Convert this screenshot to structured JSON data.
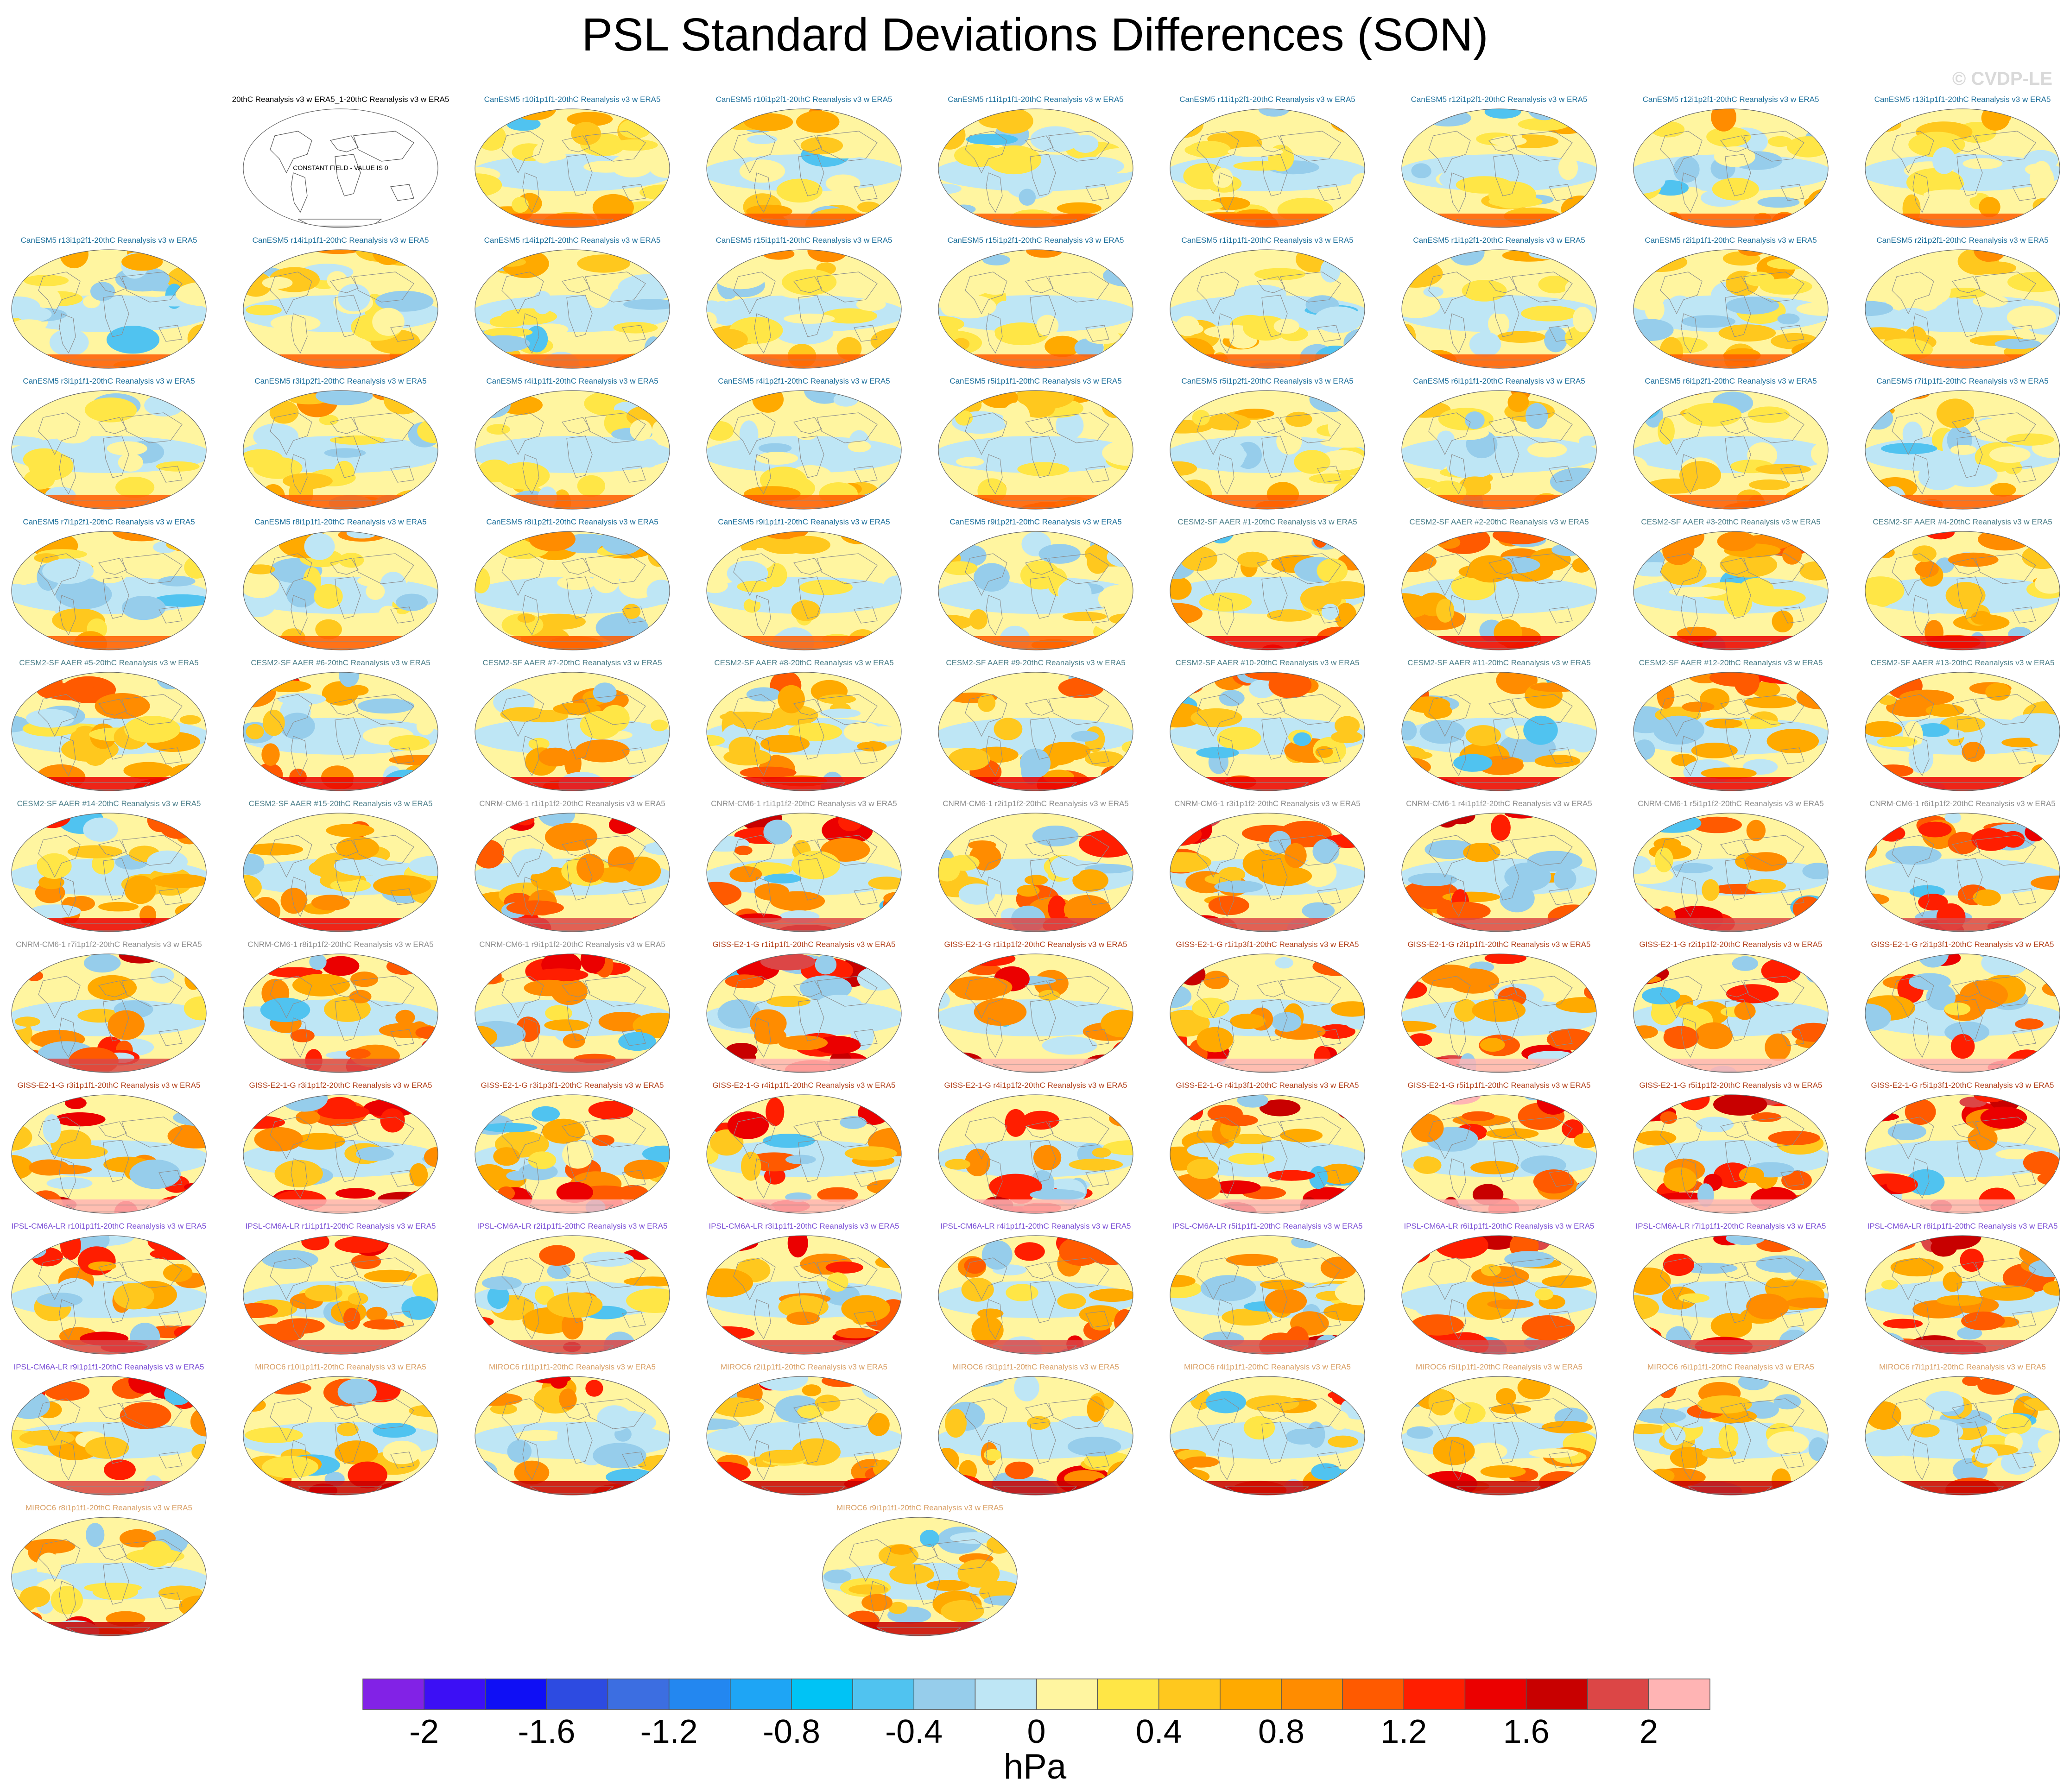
{
  "title": "PSL Standard Deviations Differences (SON)",
  "watermark": "© CVDP-LE",
  "colors": {
    "CanESM5": "#1c6f9b",
    "CESM2-SF AAER": "#4c7f8a",
    "CNRM-CM6-1": "#8c8c8c",
    "GISS-E2-1-G": "#b2401a",
    "IPSL-CM6A-LR": "#7b4fd6",
    "MIROC6": "#d9a066",
    "reference": "#000000",
    "land_outline": "#8c8c8c"
  },
  "reference_panel": {
    "title": "20thC Reanalysis v3 w ERA5_1-20thC Reanalysis v3 w ERA5",
    "note": "CONSTANT FIELD - VALUE IS 0"
  },
  "chart_data": {
    "type": "heatmap",
    "projection": "robinson",
    "variable": "PSL",
    "season": "SON",
    "units": "hPa",
    "colorbar": {
      "colors": [
        "#8222e6",
        "#3c0ff5",
        "#0f0ff5",
        "#2d4be1",
        "#3c6ee1",
        "#2387f0",
        "#1ea5f5",
        "#00c3f5",
        "#50c3f0",
        "#96cdeb",
        "#bee6f5",
        "#fff5a0",
        "#ffe646",
        "#ffc81e",
        "#ffaa00",
        "#ff8c00",
        "#ff5a00",
        "#ff1e00",
        "#eb0000",
        "#c80000",
        "#dc4646",
        "#ffb4b4"
      ],
      "levels": [
        -2,
        -1.8,
        -1.6,
        -1.4,
        -1.2,
        -1,
        -0.8,
        -0.6,
        -0.4,
        -0.2,
        0,
        0.2,
        0.4,
        0.6,
        0.8,
        1,
        1.2,
        1.4,
        1.6,
        1.8,
        2
      ],
      "labels": [
        "-2",
        "-1.6",
        "-1.2",
        "-0.8",
        "-0.4",
        "0",
        "0.4",
        "0.8",
        "1.2",
        "1.6",
        "2"
      ]
    },
    "panels": [
      {
        "model": "reference",
        "title": "20thC Reanalysis v3 w ERA5_1-20thC Reanalysis v3 w ERA5"
      },
      {
        "model": "CanESM5",
        "title": "CanESM5 r10i1p1f1-20thC Reanalysis v3 w ERA5"
      },
      {
        "model": "CanESM5",
        "title": "CanESM5 r10i1p2f1-20thC Reanalysis v3 w ERA5"
      },
      {
        "model": "CanESM5",
        "title": "CanESM5 r11i1p1f1-20thC Reanalysis v3 w ERA5"
      },
      {
        "model": "CanESM5",
        "title": "CanESM5 r11i1p2f1-20thC Reanalysis v3 w ERA5"
      },
      {
        "model": "CanESM5",
        "title": "CanESM5 r12i1p2f1-20thC Reanalysis v3 w ERA5"
      },
      {
        "model": "CanESM5",
        "title": "CanESM5 r12i1p2f1-20thC Reanalysis v3 w ERA5"
      },
      {
        "model": "CanESM5",
        "title": "CanESM5 r13i1p1f1-20thC Reanalysis v3 w ERA5"
      },
      {
        "model": "CanESM5",
        "title": "CanESM5 r13i1p2f1-20thC Reanalysis v3 w ERA5"
      },
      {
        "model": "CanESM5",
        "title": "CanESM5 r14i1p1f1-20thC Reanalysis v3 w ERA5"
      },
      {
        "model": "CanESM5",
        "title": "CanESM5 r14i1p2f1-20thC Reanalysis v3 w ERA5"
      },
      {
        "model": "CanESM5",
        "title": "CanESM5 r15i1p1f1-20thC Reanalysis v3 w ERA5"
      },
      {
        "model": "CanESM5",
        "title": "CanESM5 r15i1p2f1-20thC Reanalysis v3 w ERA5"
      },
      {
        "model": "CanESM5",
        "title": "CanESM5 r1i1p1f1-20thC Reanalysis v3 w ERA5"
      },
      {
        "model": "CanESM5",
        "title": "CanESM5 r1i1p2f1-20thC Reanalysis v3 w ERA5"
      },
      {
        "model": "CanESM5",
        "title": "CanESM5 r2i1p1f1-20thC Reanalysis v3 w ERA5"
      },
      {
        "model": "CanESM5",
        "title": "CanESM5 r2i1p2f1-20thC Reanalysis v3 w ERA5"
      },
      {
        "model": "CanESM5",
        "title": "CanESM5 r3i1p1f1-20thC Reanalysis v3 w ERA5"
      },
      {
        "model": "CanESM5",
        "title": "CanESM5 r3i1p2f1-20thC Reanalysis v3 w ERA5"
      },
      {
        "model": "CanESM5",
        "title": "CanESM5 r4i1p1f1-20thC Reanalysis v3 w ERA5"
      },
      {
        "model": "CanESM5",
        "title": "CanESM5 r4i1p2f1-20thC Reanalysis v3 w ERA5"
      },
      {
        "model": "CanESM5",
        "title": "CanESM5 r5i1p1f1-20thC Reanalysis v3 w ERA5"
      },
      {
        "model": "CanESM5",
        "title": "CanESM5 r5i1p2f1-20thC Reanalysis v3 w ERA5"
      },
      {
        "model": "CanESM5",
        "title": "CanESM5 r6i1p1f1-20thC Reanalysis v3 w ERA5"
      },
      {
        "model": "CanESM5",
        "title": "CanESM5 r6i1p2f1-20thC Reanalysis v3 w ERA5"
      },
      {
        "model": "CanESM5",
        "title": "CanESM5 r7i1p1f1-20thC Reanalysis v3 w ERA5"
      },
      {
        "model": "CanESM5",
        "title": "CanESM5 r7i1p2f1-20thC Reanalysis v3 w ERA5"
      },
      {
        "model": "CanESM5",
        "title": "CanESM5 r8i1p1f1-20thC Reanalysis v3 w ERA5"
      },
      {
        "model": "CanESM5",
        "title": "CanESM5 r8i1p2f1-20thC Reanalysis v3 w ERA5"
      },
      {
        "model": "CanESM5",
        "title": "CanESM5 r9i1p1f1-20thC Reanalysis v3 w ERA5"
      },
      {
        "model": "CanESM5",
        "title": "CanESM5 r9i1p2f1-20thC Reanalysis v3 w ERA5"
      },
      {
        "model": "CESM2-SF AAER",
        "title": "CESM2-SF AAER #1-20thC Reanalysis v3 w ERA5"
      },
      {
        "model": "CESM2-SF AAER",
        "title": "CESM2-SF AAER #2-20thC Reanalysis v3 w ERA5"
      },
      {
        "model": "CESM2-SF AAER",
        "title": "CESM2-SF AAER #3-20thC Reanalysis v3 w ERA5"
      },
      {
        "model": "CESM2-SF AAER",
        "title": "CESM2-SF AAER #4-20thC Reanalysis v3 w ERA5"
      },
      {
        "model": "CESM2-SF AAER",
        "title": "CESM2-SF AAER #5-20thC Reanalysis v3 w ERA5"
      },
      {
        "model": "CESM2-SF AAER",
        "title": "CESM2-SF AAER #6-20thC Reanalysis v3 w ERA5"
      },
      {
        "model": "CESM2-SF AAER",
        "title": "CESM2-SF AAER #7-20thC Reanalysis v3 w ERA5"
      },
      {
        "model": "CESM2-SF AAER",
        "title": "CESM2-SF AAER #8-20thC Reanalysis v3 w ERA5"
      },
      {
        "model": "CESM2-SF AAER",
        "title": "CESM2-SF AAER #9-20thC Reanalysis v3 w ERA5"
      },
      {
        "model": "CESM2-SF AAER",
        "title": "CESM2-SF AAER #10-20thC Reanalysis v3 w ERA5"
      },
      {
        "model": "CESM2-SF AAER",
        "title": "CESM2-SF AAER #11-20thC Reanalysis v3 w ERA5"
      },
      {
        "model": "CESM2-SF AAER",
        "title": "CESM2-SF AAER #12-20thC Reanalysis v3 w ERA5"
      },
      {
        "model": "CESM2-SF AAER",
        "title": "CESM2-SF AAER #13-20thC Reanalysis v3 w ERA5"
      },
      {
        "model": "CESM2-SF AAER",
        "title": "CESM2-SF AAER #14-20thC Reanalysis v3 w ERA5"
      },
      {
        "model": "CESM2-SF AAER",
        "title": "CESM2-SF AAER #15-20thC Reanalysis v3 w ERA5"
      },
      {
        "model": "CNRM-CM6-1",
        "title": "CNRM-CM6-1 r1i1p1f2-20thC Reanalysis v3 w ERA5"
      },
      {
        "model": "CNRM-CM6-1",
        "title": "CNRM-CM6-1 r1i1p1f2-20thC Reanalysis v3 w ERA5"
      },
      {
        "model": "CNRM-CM6-1",
        "title": "CNRM-CM6-1 r2i1p1f2-20thC Reanalysis v3 w ERA5"
      },
      {
        "model": "CNRM-CM6-1",
        "title": "CNRM-CM6-1 r3i1p1f2-20thC Reanalysis v3 w ERA5"
      },
      {
        "model": "CNRM-CM6-1",
        "title": "CNRM-CM6-1 r4i1p1f2-20thC Reanalysis v3 w ERA5"
      },
      {
        "model": "CNRM-CM6-1",
        "title": "CNRM-CM6-1 r5i1p1f2-20thC Reanalysis v3 w ERA5"
      },
      {
        "model": "CNRM-CM6-1",
        "title": "CNRM-CM6-1 r6i1p1f2-20thC Reanalysis v3 w ERA5"
      },
      {
        "model": "CNRM-CM6-1",
        "title": "CNRM-CM6-1 r7i1p1f2-20thC Reanalysis v3 w ERA5"
      },
      {
        "model": "CNRM-CM6-1",
        "title": "CNRM-CM6-1 r8i1p1f2-20thC Reanalysis v3 w ERA5"
      },
      {
        "model": "CNRM-CM6-1",
        "title": "CNRM-CM6-1 r9i1p1f2-20thC Reanalysis v3 w ERA5"
      },
      {
        "model": "GISS-E2-1-G",
        "title": "GISS-E2-1-G r1i1p1f1-20thC Reanalysis v3 w ERA5"
      },
      {
        "model": "GISS-E2-1-G",
        "title": "GISS-E2-1-G r1i1p1f2-20thC Reanalysis v3 w ERA5"
      },
      {
        "model": "GISS-E2-1-G",
        "title": "GISS-E2-1-G r1i1p3f1-20thC Reanalysis v3 w ERA5"
      },
      {
        "model": "GISS-E2-1-G",
        "title": "GISS-E2-1-G r2i1p1f1-20thC Reanalysis v3 w ERA5"
      },
      {
        "model": "GISS-E2-1-G",
        "title": "GISS-E2-1-G r2i1p1f2-20thC Reanalysis v3 w ERA5"
      },
      {
        "model": "GISS-E2-1-G",
        "title": "GISS-E2-1-G r2i1p3f1-20thC Reanalysis v3 w ERA5"
      },
      {
        "model": "GISS-E2-1-G",
        "title": "GISS-E2-1-G r3i1p1f1-20thC Reanalysis v3 w ERA5"
      },
      {
        "model": "GISS-E2-1-G",
        "title": "GISS-E2-1-G r3i1p1f2-20thC Reanalysis v3 w ERA5"
      },
      {
        "model": "GISS-E2-1-G",
        "title": "GISS-E2-1-G r3i1p3f1-20thC Reanalysis v3 w ERA5"
      },
      {
        "model": "GISS-E2-1-G",
        "title": "GISS-E2-1-G r4i1p1f1-20thC Reanalysis v3 w ERA5"
      },
      {
        "model": "GISS-E2-1-G",
        "title": "GISS-E2-1-G r4i1p1f2-20thC Reanalysis v3 w ERA5"
      },
      {
        "model": "GISS-E2-1-G",
        "title": "GISS-E2-1-G r4i1p3f1-20thC Reanalysis v3 w ERA5"
      },
      {
        "model": "GISS-E2-1-G",
        "title": "GISS-E2-1-G r5i1p1f1-20thC Reanalysis v3 w ERA5"
      },
      {
        "model": "GISS-E2-1-G",
        "title": "GISS-E2-1-G r5i1p1f2-20thC Reanalysis v3 w ERA5"
      },
      {
        "model": "GISS-E2-1-G",
        "title": "GISS-E2-1-G r5i1p3f1-20thC Reanalysis v3 w ERA5"
      },
      {
        "model": "IPSL-CM6A-LR",
        "title": "IPSL-CM6A-LR r10i1p1f1-20thC Reanalysis v3 w ERA5"
      },
      {
        "model": "IPSL-CM6A-LR",
        "title": "IPSL-CM6A-LR r1i1p1f1-20thC Reanalysis v3 w ERA5"
      },
      {
        "model": "IPSL-CM6A-LR",
        "title": "IPSL-CM6A-LR r2i1p1f1-20thC Reanalysis v3 w ERA5"
      },
      {
        "model": "IPSL-CM6A-LR",
        "title": "IPSL-CM6A-LR r3i1p1f1-20thC Reanalysis v3 w ERA5"
      },
      {
        "model": "IPSL-CM6A-LR",
        "title": "IPSL-CM6A-LR r4i1p1f1-20thC Reanalysis v3 w ERA5"
      },
      {
        "model": "IPSL-CM6A-LR",
        "title": "IPSL-CM6A-LR r5i1p1f1-20thC Reanalysis v3 w ERA5"
      },
      {
        "model": "IPSL-CM6A-LR",
        "title": "IPSL-CM6A-LR r6i1p1f1-20thC Reanalysis v3 w ERA5"
      },
      {
        "model": "IPSL-CM6A-LR",
        "title": "IPSL-CM6A-LR r7i1p1f1-20thC Reanalysis v3 w ERA5"
      },
      {
        "model": "IPSL-CM6A-LR",
        "title": "IPSL-CM6A-LR r8i1p1f1-20thC Reanalysis v3 w ERA5"
      },
      {
        "model": "IPSL-CM6A-LR",
        "title": "IPSL-CM6A-LR r9i1p1f1-20thC Reanalysis v3 w ERA5"
      },
      {
        "model": "MIROC6",
        "title": "MIROC6 r10i1p1f1-20thC Reanalysis v3 w ERA5"
      },
      {
        "model": "MIROC6",
        "title": "MIROC6 r1i1p1f1-20thC Reanalysis v3 w ERA5"
      },
      {
        "model": "MIROC6",
        "title": "MIROC6 r2i1p1f1-20thC Reanalysis v3 w ERA5"
      },
      {
        "model": "MIROC6",
        "title": "MIROC6 r3i1p1f1-20thC Reanalysis v3 w ERA5"
      },
      {
        "model": "MIROC6",
        "title": "MIROC6 r4i1p1f1-20thC Reanalysis v3 w ERA5"
      },
      {
        "model": "MIROC6",
        "title": "MIROC6 r5i1p1f1-20thC Reanalysis v3 w ERA5"
      },
      {
        "model": "MIROC6",
        "title": "MIROC6 r6i1p1f1-20thC Reanalysis v3 w ERA5"
      },
      {
        "model": "MIROC6",
        "title": "MIROC6 r7i1p1f1-20thC Reanalysis v3 w ERA5"
      },
      {
        "model": "MIROC6",
        "title": "MIROC6 r8i1p1f1-20thC Reanalysis v3 w ERA5"
      },
      {
        "model": "MIROC6",
        "title": "MIROC6 r9i1p1f1-20thC Reanalysis v3 w ERA5"
      }
    ]
  }
}
